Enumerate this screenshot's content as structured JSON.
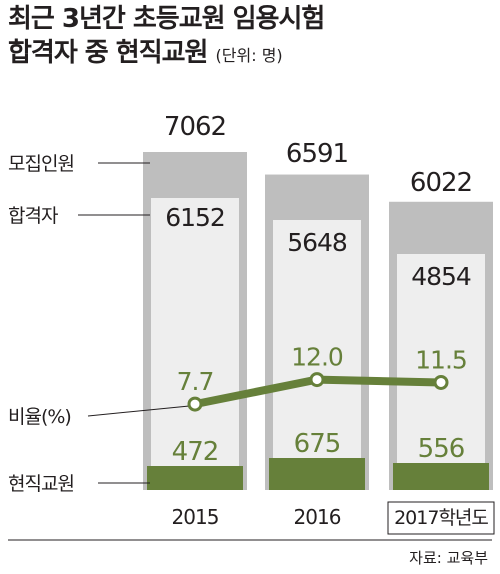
{
  "title": {
    "line1": "최근 3년간 초등교원 임용시험",
    "line2": "합격자 중 현직교원",
    "unit": "(단위: 명)"
  },
  "legend_labels": {
    "recruit": "모집인원",
    "passed": "합격자",
    "ratio": "비율(%)",
    "current": "현직교원"
  },
  "source": "자료: 교육부",
  "colors": {
    "recruit": "#bebebe",
    "passed": "#eeeeee",
    "current": "#66803a",
    "ratio_text": "#66803a",
    "text": "#231f20"
  },
  "chart_data": {
    "type": "bar",
    "categories": [
      "2015",
      "2016",
      "2017학년도"
    ],
    "series": [
      {
        "name": "모집인원",
        "values": [
          7062,
          6591,
          6022
        ]
      },
      {
        "name": "합격자",
        "values": [
          6152,
          5648,
          4854
        ]
      },
      {
        "name": "현직교원",
        "values": [
          472,
          675,
          556
        ]
      },
      {
        "name": "비율(%)",
        "type": "line",
        "values": [
          7.7,
          12.0,
          11.5
        ]
      }
    ],
    "value_labels": {
      "recruit": [
        "7062",
        "6591",
        "6022"
      ],
      "passed": [
        "6152",
        "5648",
        "4854"
      ],
      "current": [
        "472",
        "675",
        "556"
      ],
      "ratio": [
        "7.7",
        "12.0",
        "11.5"
      ]
    },
    "grid": false
  }
}
